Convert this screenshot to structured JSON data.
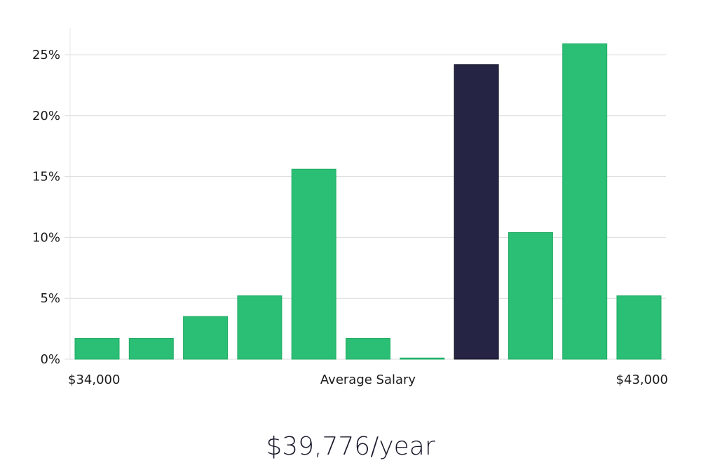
{
  "chart_data": {
    "type": "bar",
    "title": "",
    "xlabel": "Average Salary",
    "ylabel": "",
    "x_range_labels": {
      "min": "$34,000",
      "max": "$43,000"
    },
    "ylim": [
      0,
      27
    ],
    "y_ticks": [
      0,
      5,
      10,
      15,
      20,
      25
    ],
    "y_tick_suffix": "%",
    "grid": true,
    "highlight_index": 7,
    "colors": {
      "bar": "#2bbf76",
      "bar_stroke": "#1faa63",
      "highlight": "#262444",
      "highlight_stroke": "#111025"
    },
    "categories": [
      "1",
      "2",
      "3",
      "4",
      "5",
      "6",
      "7",
      "8",
      "9",
      "10",
      "11"
    ],
    "values": [
      1.7,
      1.7,
      3.5,
      5.2,
      15.6,
      1.7,
      0.1,
      24.2,
      10.4,
      25.9,
      5.2
    ]
  },
  "headline": "$39,776/year"
}
